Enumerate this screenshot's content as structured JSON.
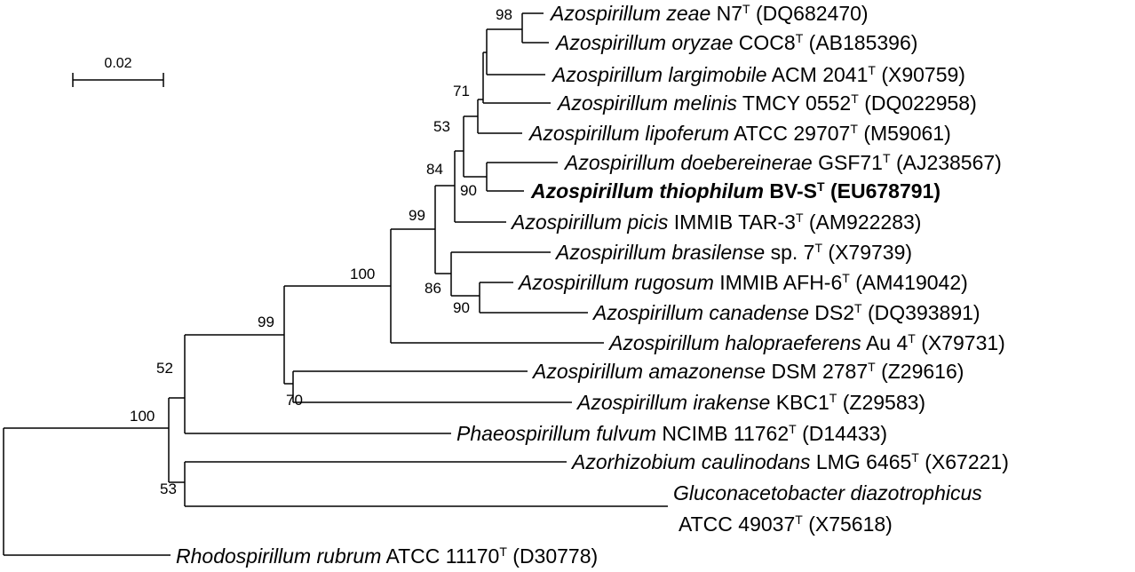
{
  "scale_bar": {
    "label": "0.02"
  },
  "bootstrap_values": [
    "98",
    "71",
    "53",
    "84",
    "90",
    "99",
    "100",
    "86",
    "90",
    "99",
    "52",
    "70",
    "100",
    "53"
  ],
  "taxa": [
    {
      "name": "Azospirillum zeae",
      "strain": "N7",
      "accession": "(DQ682470)"
    },
    {
      "name": "Azospirillum oryzae",
      "strain": "COC8",
      "accession": "(AB185396)"
    },
    {
      "name": "Azospirillum largimobile",
      "strain": "ACM 2041",
      "accession": "(X90759)"
    },
    {
      "name": "Azospirillum melinis",
      "strain": "TMCY 0552",
      "accession": "(DQ022958)"
    },
    {
      "name": "Azospirillum lipoferum",
      "strain": "ATCC 29707",
      "accession": "(M59061)"
    },
    {
      "name": "Azospirillum doebereinerae",
      "strain": "GSF71",
      "accession": "(AJ238567)"
    },
    {
      "name": "Azospirillum thiophilum",
      "strain": "BV-S",
      "accession": "(EU678791)",
      "highlighted": true
    },
    {
      "name": "Azospirillum picis",
      "strain": "IMMIB TAR-3",
      "accession": "(AM922283)"
    },
    {
      "name": "Azospirillum brasilense",
      "strain": "sp. 7",
      "accession": "(X79739)"
    },
    {
      "name": "Azospirillum rugosum",
      "strain": "IMMIB AFH-6",
      "accession": "(AM419042)"
    },
    {
      "name": "Azospirillum canadense",
      "strain": "DS2",
      "accession": "(DQ393891)"
    },
    {
      "name": "Azospirillum halopraeferens",
      "strain": "Au 4",
      "accession": "(X79731)"
    },
    {
      "name": "Azospirillum amazonense",
      "strain": "DSM 2787",
      "accession": "(Z29616)"
    },
    {
      "name": "Azospirillum irakense",
      "strain": "KBC1",
      "accession": "(Z29583)"
    },
    {
      "name": "Phaeospirillum fulvum",
      "strain": "NCIMB 11762",
      "accession": "(D14433)"
    },
    {
      "name": "Azorhizobium caulinodans",
      "strain": "LMG 6465",
      "accession": "(X67221)"
    },
    {
      "name": "Gluconacetobacter diazotrophicus",
      "strain": "ATCC 49037",
      "accession": "(X75618)"
    },
    {
      "name": "Rhodospirillum rubrum",
      "strain": "ATCC 11170",
      "accession": "(D30778)"
    }
  ],
  "type_strain_mark": "T"
}
